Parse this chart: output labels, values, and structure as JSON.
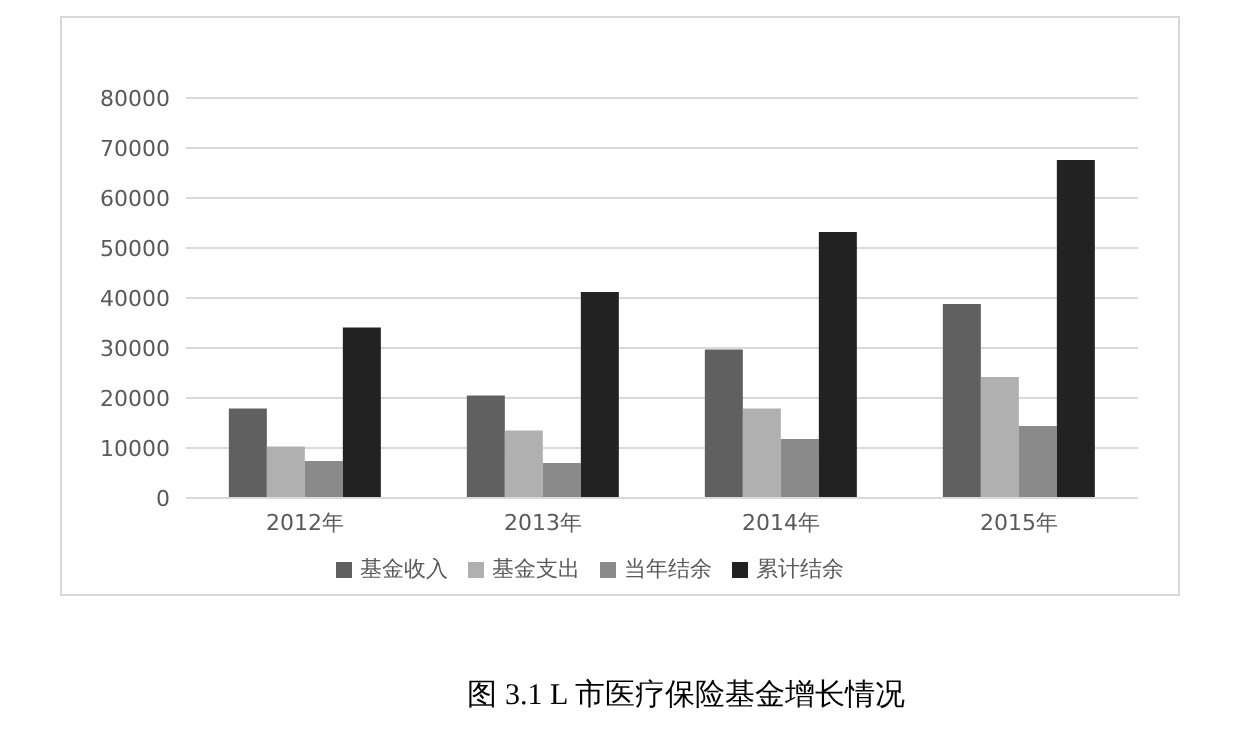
{
  "chart_data": {
    "type": "bar",
    "categories": [
      "2012年",
      "2013年",
      "2014年",
      "2015年"
    ],
    "series": [
      {
        "name": "基金收入",
        "color": "#606060",
        "values": [
          17900,
          20500,
          29700,
          38800
        ]
      },
      {
        "name": "基金支出",
        "color": "#b0b0b0",
        "values": [
          10300,
          13500,
          17900,
          24200
        ]
      },
      {
        "name": "当年结余",
        "color": "#8a8a8a",
        "values": [
          7400,
          7000,
          11800,
          14400
        ]
      },
      {
        "name": "累计结余",
        "color": "#222222",
        "values": [
          34100,
          41200,
          53200,
          67600
        ]
      }
    ],
    "ylim": [
      0,
      80000
    ],
    "yticks": [
      0,
      10000,
      20000,
      30000,
      40000,
      50000,
      60000,
      70000,
      80000
    ],
    "grid": "y",
    "legend": "bottom",
    "annotations": [
      "图 3.1 L 市医疗保险基金增长情况"
    ]
  }
}
